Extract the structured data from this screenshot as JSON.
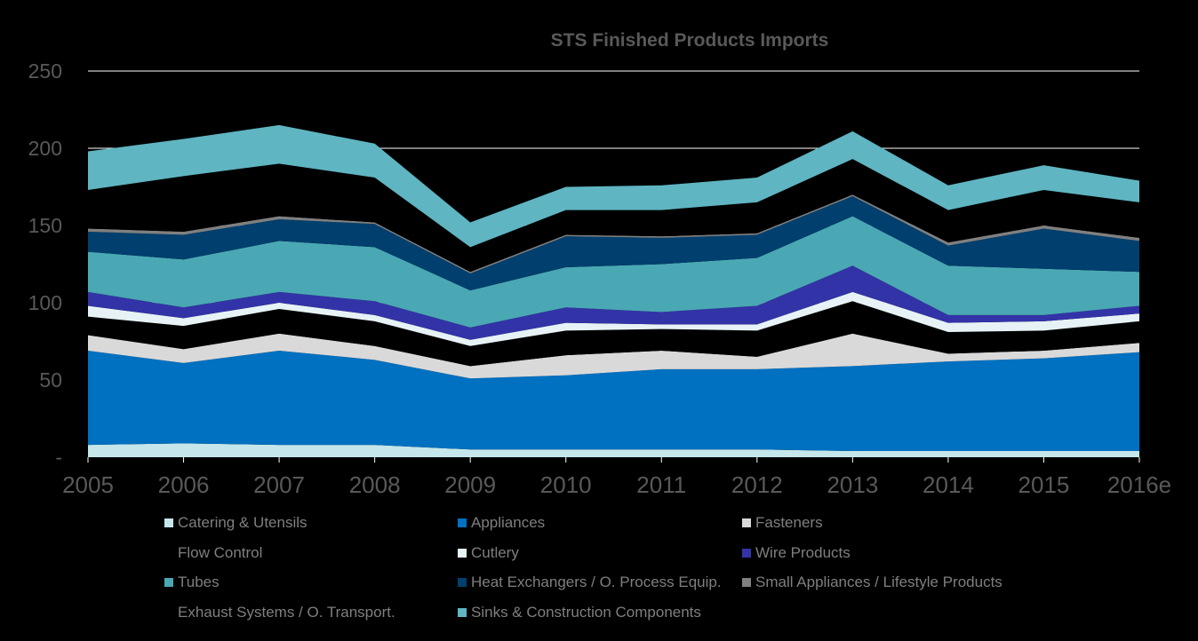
{
  "chart_data": {
    "type": "area",
    "stacked": true,
    "title": "STS Finished Products Imports",
    "xlabel": "",
    "ylabel": "",
    "ylim": [
      0,
      250
    ],
    "yticks": [
      0,
      50,
      100,
      150,
      200,
      250
    ],
    "ytick_labels": [
      "-",
      "50",
      "100",
      "150",
      "200",
      "250"
    ],
    "grid": true,
    "legend_position": "bottom",
    "categories": [
      "2005",
      "2006",
      "2007",
      "2008",
      "2009",
      "2010",
      "2011",
      "2012",
      "2013",
      "2014",
      "2015",
      "2016e"
    ],
    "series": [
      {
        "name": "Catering & Utensils",
        "color": "#c5e6ea",
        "values": [
          8,
          9,
          8,
          8,
          5,
          5,
          5,
          5,
          4,
          4,
          4,
          4
        ]
      },
      {
        "name": "Appliances",
        "color": "#0070c0",
        "values": [
          61,
          52,
          61,
          55,
          46,
          48,
          52,
          52,
          55,
          58,
          60,
          64
        ]
      },
      {
        "name": "Fasteners",
        "color": "#d9d9d9",
        "values": [
          10,
          9,
          11,
          9,
          8,
          13,
          12,
          8,
          21,
          5,
          5,
          6
        ]
      },
      {
        "name": "Flow Control",
        "color": "#000000",
        "values": [
          12,
          15,
          16,
          16,
          13,
          16,
          14,
          17,
          21,
          14,
          13,
          14
        ]
      },
      {
        "name": "Cutlery",
        "color": "#e6f2f5",
        "values": [
          7,
          5,
          4,
          4,
          4,
          5,
          3,
          4,
          6,
          6,
          6,
          5
        ]
      },
      {
        "name": "Wire Products",
        "color": "#3333a8",
        "values": [
          9,
          7,
          7,
          9,
          8,
          10,
          8,
          12,
          17,
          5,
          4,
          5
        ]
      },
      {
        "name": "Tubes",
        "color": "#4aa8b4",
        "values": [
          26,
          31,
          33,
          35,
          24,
          26,
          31,
          31,
          32,
          32,
          30,
          22
        ]
      },
      {
        "name": "Heat Exchangers / O. Process Equip.",
        "color": "#003f6e",
        "values": [
          13,
          16,
          14,
          15,
          11,
          20,
          17,
          15,
          13,
          13,
          26,
          20
        ]
      },
      {
        "name": "Small Appliances / Lifestyle Products",
        "color": "#808080",
        "values": [
          2,
          2,
          2,
          1,
          1,
          1,
          1,
          1,
          1,
          2,
          2,
          2
        ]
      },
      {
        "name": "Exhaust Systems / O. Transport.",
        "color": "#000000",
        "values": [
          25,
          36,
          34,
          29,
          16,
          16,
          17,
          20,
          23,
          21,
          23,
          23
        ]
      },
      {
        "name": "Sinks & Construction Components",
        "color": "#5fb5c1",
        "values": [
          25,
          24,
          25,
          22,
          16,
          15,
          16,
          16,
          18,
          16,
          16,
          14
        ]
      }
    ]
  }
}
